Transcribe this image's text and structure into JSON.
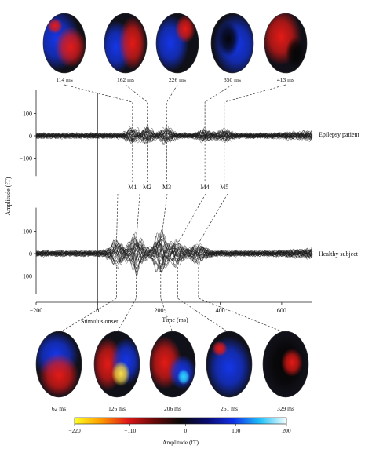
{
  "chart_data": {
    "type": "line",
    "xlabel": "Time (ms)",
    "ylabel": "Amplitude (fT)",
    "xlim": [
      -200,
      700
    ],
    "ylim": [
      -150,
      150
    ],
    "xticks": [
      "−200",
      "0",
      "200",
      "400",
      "600"
    ],
    "xtick_values": [
      -200,
      0,
      200,
      400,
      600
    ],
    "yticks": [
      "100",
      "0",
      "−100"
    ],
    "ytick_values": [
      100,
      0,
      -100
    ],
    "stimulus_label": "Stimulus onset",
    "panels": [
      {
        "name": "Epilepsy patient",
        "peaks": [
          {
            "label": "M1",
            "time_ms": 114,
            "time_text": "114 ms"
          },
          {
            "label": "M2",
            "time_ms": 162,
            "time_text": "162 ms"
          },
          {
            "label": "M3",
            "time_ms": 226,
            "time_text": "226 ms"
          },
          {
            "label": "M4",
            "time_ms": 350,
            "time_text": "350 ms"
          },
          {
            "label": "M5",
            "time_ms": 413,
            "time_text": "413 ms"
          }
        ]
      },
      {
        "name": "Healthy subject",
        "peaks": [
          {
            "time_ms": 62,
            "time_text": "62 ms"
          },
          {
            "time_ms": 126,
            "time_text": "126 ms"
          },
          {
            "time_ms": 206,
            "time_text": "206 ms"
          },
          {
            "time_ms": 261,
            "time_text": "261 ms"
          },
          {
            "time_ms": 329,
            "time_text": "329 ms"
          }
        ]
      }
    ],
    "colorbar": {
      "label": "Amplitude (fT)",
      "ticks": [
        "−220",
        "−110",
        "0",
        "100",
        "200"
      ],
      "tick_values": [
        -220,
        -110,
        0,
        100,
        200
      ],
      "colors": [
        "#ffff20",
        "#ff9a00",
        "#e01818",
        "#6a0808",
        "#080808",
        "#0a0a70",
        "#1030e8",
        "#20c0f8",
        "#f4ffff"
      ]
    }
  }
}
